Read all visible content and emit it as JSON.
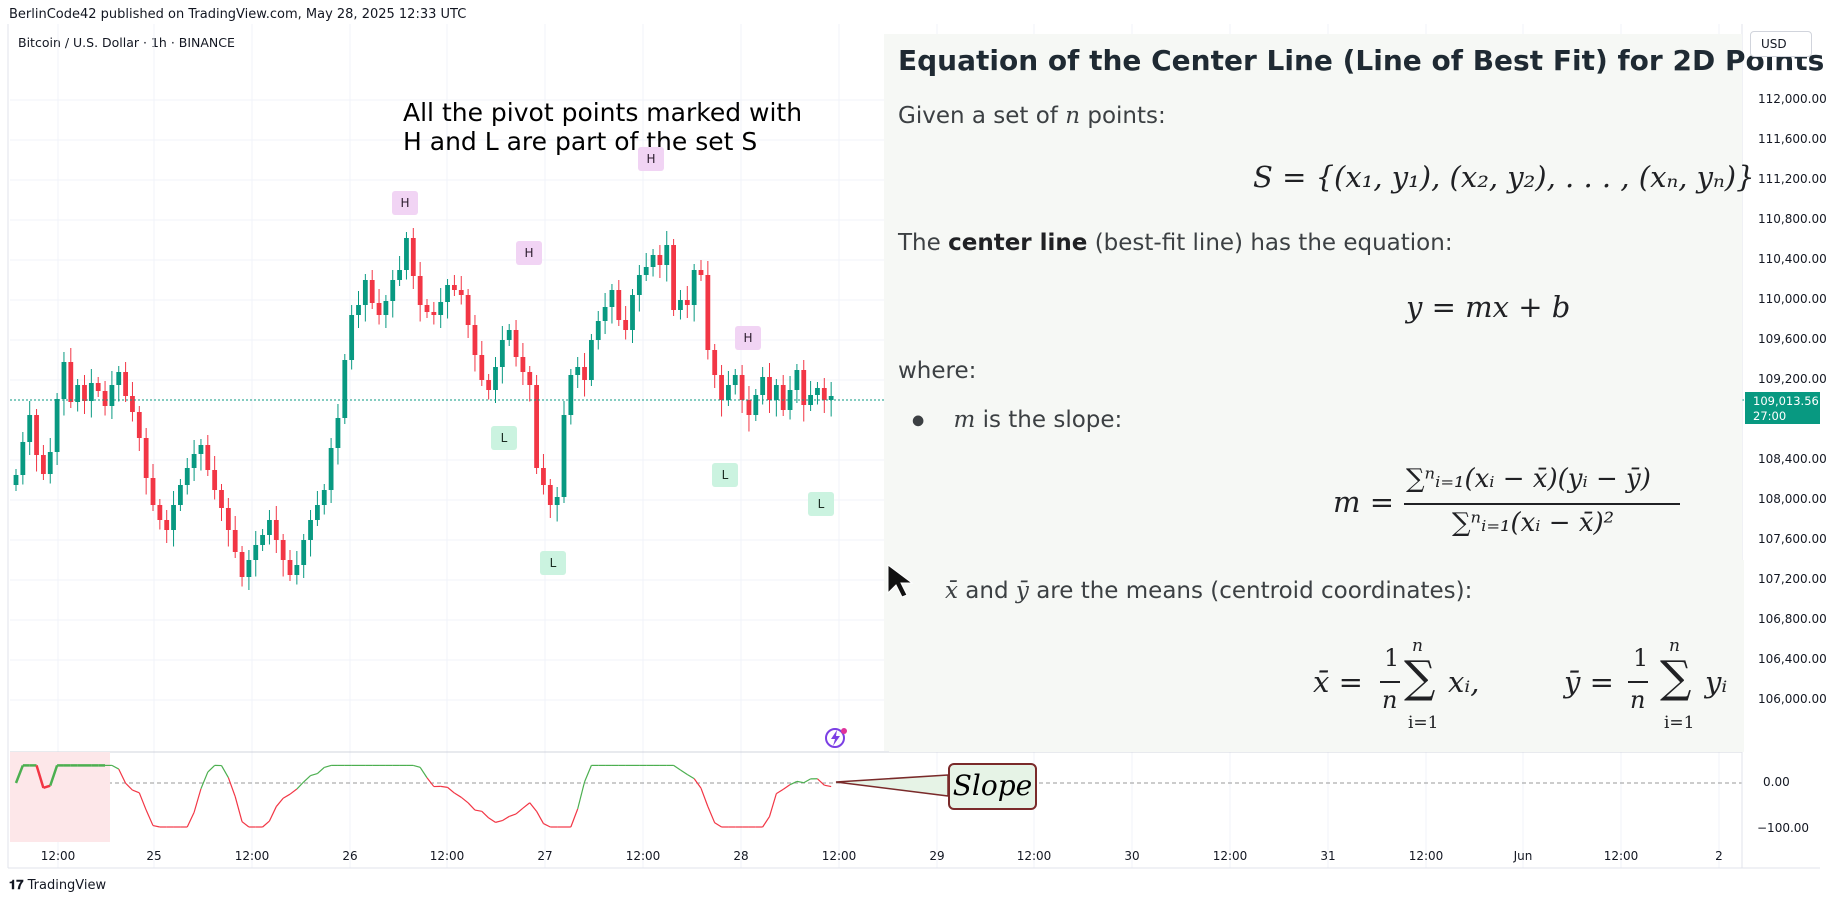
{
  "header": {
    "caption": "BerlinCode42 published on TradingView.com, May 28, 2025 12:33 UTC",
    "symbol": "Bitcoin / U.S. Dollar · 1h · BINANCE",
    "currency": "USD"
  },
  "annotation": {
    "line1": "All the pivot points marked with",
    "line2": "H and L are part of the set S"
  },
  "formula_panel": {
    "title": "Equation of the Center Line (Line of Best Fit) for 2D Points",
    "given_prefix": "Given a set of",
    "given_var": "n",
    "given_suffix": "points:",
    "set_eq": "S = {(x₁, y₁), (x₂, y₂), . . . , (xₙ, yₙ)}",
    "center_prefix": "The",
    "center_bold": "center line",
    "center_suffix": "(best-fit line) has the equation:",
    "line_eq": "y = mx + b",
    "where": "where:",
    "bullet1_var": "m",
    "bullet1_text": "is the slope:",
    "slope_lhs": "m =",
    "slope_num": "∑ⁿᵢ₌₁(xᵢ − x̄)(yᵢ − ȳ)",
    "slope_den": "∑ⁿᵢ₌₁(xᵢ − x̄)²",
    "bullet2_xbar": "x̄",
    "bullet2_and": "and",
    "bullet2_ybar": "ȳ",
    "bullet2_text": "are the means (centroid coordinates):",
    "xbar_lhs": "x̄ =",
    "ybar_lhs": "ȳ =",
    "frac_num": "1",
    "frac_den": "n",
    "sum_top": "n",
    "sum_bottom": "i=1",
    "xbar_term": "xᵢ,",
    "ybar_term": "yᵢ"
  },
  "price_axis": {
    "labels": [
      "112,000.00",
      "111,600.00",
      "111,200.00",
      "110,800.00",
      "110,400.00",
      "110,000.00",
      "109,600.00",
      "109,200.00",
      "108,400.00",
      "108,000.00",
      "107,600.00",
      "107,200.00",
      "106,800.00",
      "106,400.00",
      "106,000.00"
    ],
    "current_price": "109,013.56",
    "countdown": "27:00"
  },
  "oscillator_axis": {
    "zero": "0.00",
    "minus100": "−100.00"
  },
  "slope_label": "Slope",
  "time_axis": [
    "12:00",
    "25",
    "12:00",
    "26",
    "12:00",
    "27",
    "12:00",
    "28",
    "12:00",
    "29",
    "12:00",
    "30",
    "12:00",
    "31",
    "12:00",
    "Jun",
    "12:00",
    "2"
  ],
  "footer": {
    "logo": "TradingView"
  },
  "colors": {
    "up": "#089981",
    "down": "#f23645",
    "osc_up": "#4caf50",
    "osc_down": "#f23645",
    "pivot_h": "#f1d4f4",
    "pivot_l": "#cbf3e0"
  },
  "chart_data": {
    "type": "candlestick",
    "interval": "1h",
    "ylim": [
      105800,
      112200
    ],
    "pivots": [
      {
        "label": "H",
        "price": 110690
      },
      {
        "label": "H",
        "price": 110190
      },
      {
        "label": "H",
        "price": 111130
      },
      {
        "label": "H",
        "price": 109340
      },
      {
        "label": "L",
        "price": 108900
      },
      {
        "label": "L",
        "price": 107650
      },
      {
        "label": "L",
        "price": 108530
      },
      {
        "label": "L",
        "price": 108240
      }
    ],
    "close": [
      108250,
      108580,
      108850,
      108450,
      108260,
      108480,
      109010,
      109380,
      108980,
      109150,
      108990,
      109170,
      109090,
      108940,
      109150,
      109280,
      109040,
      108880,
      108620,
      108220,
      107950,
      107800,
      107700,
      107950,
      108150,
      108320,
      108460,
      108550,
      108300,
      108100,
      107920,
      107700,
      107480,
      107230,
      107400,
      107550,
      107650,
      107800,
      107600,
      107400,
      107250,
      107350,
      107600,
      107800,
      107950,
      108100,
      108520,
      108820,
      109400,
      109850,
      109950,
      110200,
      109970,
      109850,
      109990,
      110200,
      110300,
      110620,
      110240,
      109950,
      109880,
      109850,
      109980,
      110150,
      110100,
      110050,
      109750,
      109450,
      109200,
      109100,
      109330,
      109600,
      109700,
      109430,
      109280,
      109150,
      108320,
      108150,
      107950,
      108030,
      108850,
      109250,
      109330,
      109200,
      109600,
      109790,
      109930,
      110100,
      109800,
      109700,
      110050,
      110250,
      110330,
      110450,
      110350,
      110550,
      109900,
      110000,
      109950,
      110300,
      110250,
      109500,
      109250,
      109000,
      109150,
      109250,
      109000,
      108850,
      109050,
      109230,
      109000,
      109150,
      108900,
      109100,
      109300,
      108950,
      109050,
      109120,
      109000,
      109040
    ]
  }
}
